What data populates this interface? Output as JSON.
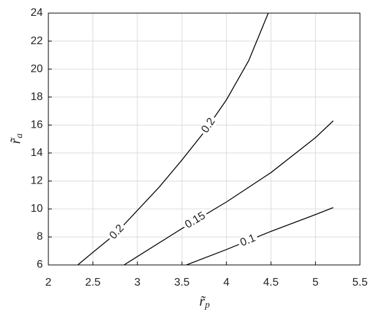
{
  "chart_data": {
    "type": "contour",
    "x_label": {
      "symbol": "r̃",
      "subscript": "p"
    },
    "y_label": {
      "symbol": "r̃",
      "subscript": "a"
    },
    "xlim": [
      2,
      5.5
    ],
    "xticks": [
      2,
      2.5,
      3,
      3.5,
      4,
      4.5,
      5,
      5.5
    ],
    "ylim": [
      6,
      24
    ],
    "yticks": [
      6,
      8,
      10,
      12,
      14,
      16,
      18,
      20,
      22,
      24
    ],
    "grid": true,
    "series": [
      {
        "name": "0.2",
        "color": "#000000",
        "x": [
          2.33,
          2.5,
          2.75,
          3,
          3.25,
          3.5,
          3.75,
          4,
          4.25,
          4.47
        ],
        "y": [
          6,
          6.9,
          8.2,
          9.9,
          11.6,
          13.5,
          15.5,
          17.8,
          20.6,
          24
        ]
      },
      {
        "name": "0.15",
        "color": "#000000",
        "x": [
          2.85,
          3,
          3.5,
          4,
          4.5,
          5,
          5.2
        ],
        "y": [
          6,
          6.6,
          8.6,
          10.5,
          12.6,
          15.1,
          16.3
        ]
      },
      {
        "name": "0.1",
        "color": "#000000",
        "x": [
          3.55,
          4,
          4.5,
          5,
          5.2
        ],
        "y": [
          6,
          7.1,
          8.4,
          9.6,
          10.1
        ]
      }
    ]
  }
}
